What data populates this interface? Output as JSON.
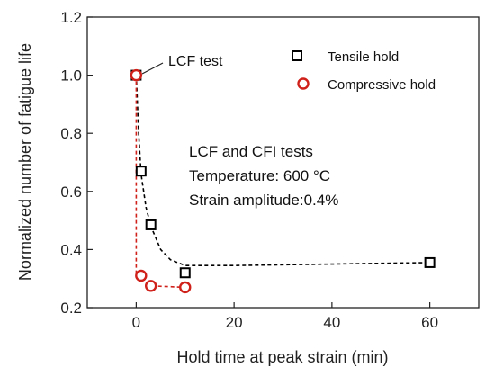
{
  "chart_data": {
    "type": "scatter",
    "xlabel": "Hold time at peak strain (min)",
    "ylabel": "Normalized number of fatigue life",
    "xlim": [
      -10,
      70
    ],
    "ylim": [
      0.2,
      1.2
    ],
    "x_ticks": [
      0,
      20,
      40,
      60
    ],
    "y_ticks": [
      0.2,
      0.4,
      0.6,
      0.8,
      1.0,
      1.2
    ],
    "x_tick_labels": [
      "0",
      "20",
      "40",
      "60"
    ],
    "y_tick_labels": [
      "0.2",
      "0.4",
      "0.6",
      "0.8",
      "1.0",
      "1.2"
    ],
    "grid": false,
    "legend_position": "top-right",
    "series": [
      {
        "name": "Tensile hold",
        "marker": "square",
        "color": "#000000",
        "x": [
          0,
          1,
          3,
          10,
          60
        ],
        "y": [
          1.0,
          0.67,
          0.485,
          0.32,
          0.355
        ],
        "fit_line": {
          "style": "dashed",
          "color": "#000000",
          "x": [
            0,
            0.5,
            1,
            2,
            3,
            5,
            7,
            10,
            20,
            60
          ],
          "y": [
            1.0,
            0.8,
            0.66,
            0.545,
            0.48,
            0.4,
            0.365,
            0.345,
            0.345,
            0.355
          ]
        }
      },
      {
        "name": "Compressive hold",
        "marker": "circle",
        "color": "#d0201a",
        "x": [
          0,
          1,
          3,
          10
        ],
        "y": [
          1.0,
          0.31,
          0.275,
          0.27
        ],
        "fit_line": {
          "style": "dashed",
          "color": "#d0201a",
          "x": [
            0,
            0,
            1,
            3,
            10
          ],
          "y": [
            1.0,
            0.31,
            0.31,
            0.275,
            0.27
          ]
        }
      }
    ],
    "annotations": [
      {
        "text": "LCF test",
        "x": 0,
        "y": 1.0
      }
    ],
    "notes": [
      "LCF and CFI tests",
      "Temperature:  600 °C",
      "Strain amplitude:0.4%"
    ]
  }
}
